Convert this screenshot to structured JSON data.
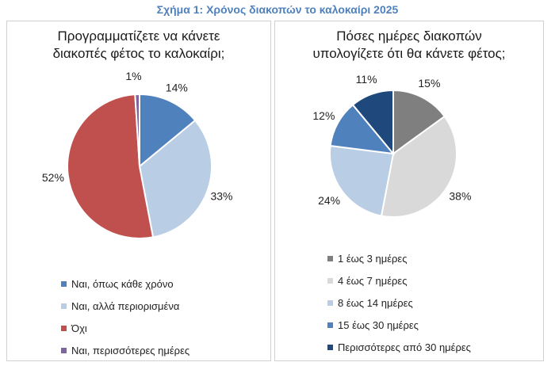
{
  "figure_title": "Σχήμα 1: Χρόνος διακοπών το καλοκαίρι 2025",
  "chart_data": [
    {
      "type": "pie",
      "title_lines": [
        "Προγραμματίζετε να κάνετε",
        "διακοπές φέτος το καλοκαίρι;"
      ],
      "slices": [
        {
          "label": "Ναι, όπως κάθε χρόνο",
          "value": 14,
          "display": "14%",
          "color": "#4f81bd"
        },
        {
          "label": "Ναι, αλλά περιορισμένα",
          "value": 33,
          "display": "33%",
          "color": "#b9cde5"
        },
        {
          "label": "Όχι",
          "value": 52,
          "display": "52%",
          "color": "#c0504d"
        },
        {
          "label": "Ναι, περισσότερες ημέρες",
          "value": 1,
          "display": "1%",
          "color": "#8064a2"
        }
      ],
      "legend_position": "bottom"
    },
    {
      "type": "pie",
      "title_lines": [
        "Πόσες ημέρες διακοπών",
        "υπολογίζετε ότι θα κάνετε φέτος;"
      ],
      "slices": [
        {
          "label": "1 έως 3 ημέρες",
          "value": 15,
          "display": "15%",
          "color": "#7f7f7f"
        },
        {
          "label": "4 έως 7 ημέρες",
          "value": 38,
          "display": "38%",
          "color": "#d9d9d9"
        },
        {
          "label": "8 έως 14 ημέρες",
          "value": 24,
          "display": "24%",
          "color": "#b9cde5"
        },
        {
          "label": "15 έως 30 ημέρες",
          "value": 12,
          "display": "12%",
          "color": "#4f81bd"
        },
        {
          "label": "Περισσότερες από 30 ημέρες",
          "value": 11,
          "display": "11%",
          "color": "#1f497d"
        }
      ],
      "legend_position": "bottom"
    }
  ]
}
